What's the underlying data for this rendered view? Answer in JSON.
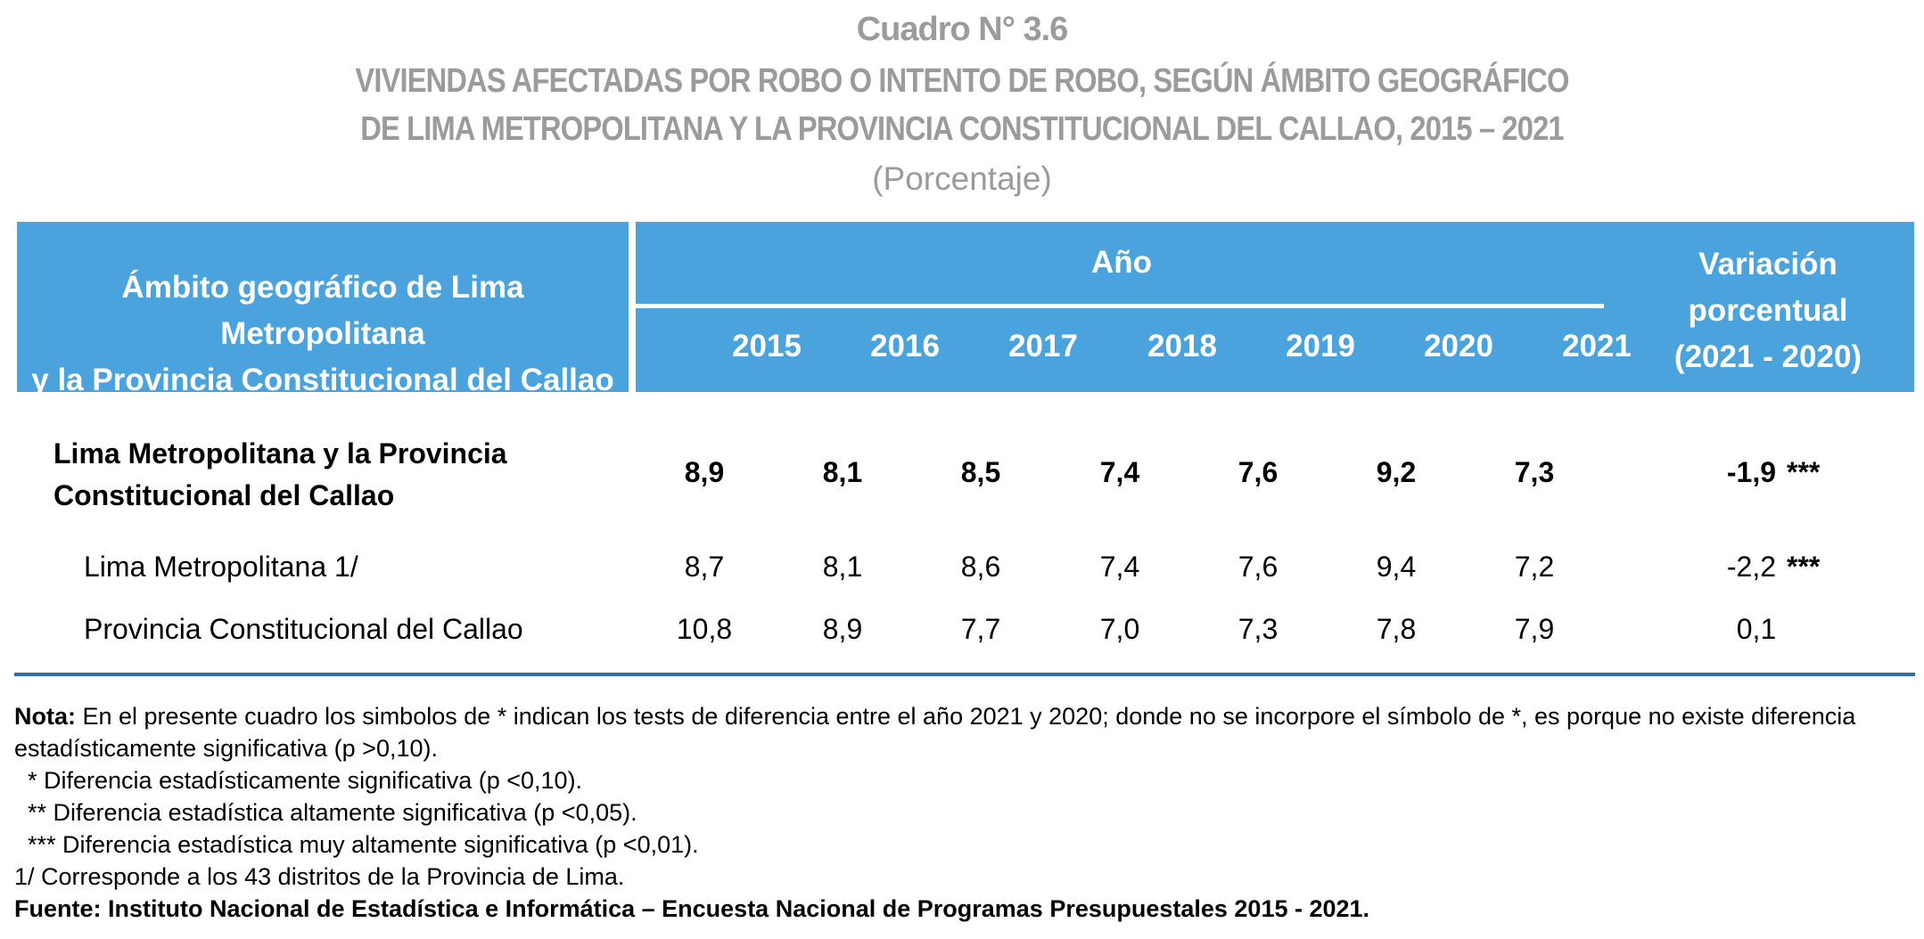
{
  "title": {
    "cuadro": "Cuadro N° 3.6",
    "line1": "VIVIENDAS AFECTADAS POR ROBO O INTENTO DE ROBO, SEGÚN ÁMBITO GEOGRÁFICO",
    "line2": "DE LIMA METROPOLITANA Y LA PROVINCIA CONSTITUCIONAL DEL CALLAO, 2015 – 2021",
    "unit": "(Porcentaje)"
  },
  "header": {
    "geo_line1": "Ámbito geográfico de Lima Metropolitana",
    "geo_line2": "y la Provincia Constitucional del Callao",
    "anio": "Año",
    "years": [
      "2015",
      "2016",
      "2017",
      "2018",
      "2019",
      "2020",
      "2021"
    ],
    "var_line1": "Variación",
    "var_line2": "porcentual",
    "var_line3": "(2021 - 2020)"
  },
  "rows": [
    {
      "label_line1": "Lima Metropolitana y la Provincia",
      "label_line2": "Constitucional del Callao",
      "values": [
        "8,9",
        "8,1",
        "8,5",
        "7,4",
        "7,6",
        "9,2",
        "7,3"
      ],
      "variation": "-1,9",
      "stars": "***"
    },
    {
      "label": "Lima Metropolitana 1/",
      "values": [
        "8,7",
        "8,1",
        "8,6",
        "7,4",
        "7,6",
        "9,4",
        "7,2"
      ],
      "variation": "-2,2",
      "stars": "***"
    },
    {
      "label": "Provincia Constitucional del Callao",
      "values": [
        "10,8",
        "8,9",
        "7,7",
        "7,0",
        "7,3",
        "7,8",
        "7,9"
      ],
      "variation": "0,1",
      "stars": ""
    }
  ],
  "notes": {
    "nota_label": "Nota:",
    "nota_text": " En el presente cuadro los simbolos de * indican los tests de diferencia entre el año 2021 y 2020; donde no se incorpore el símbolo de *, es porque no existe diferencia estadísticamente significativa (p >0,10).",
    "star1": "  * Diferencia estadísticamente significativa (p <0,10).",
    "star2": "  ** Diferencia estadística altamente significativa (p <0,05).",
    "star3": "  *** Diferencia estadística muy altamente significativa (p <0,01).",
    "footnote1": "1/ Corresponde a los 43 distritos de la Provincia de Lima.",
    "fuente": "Fuente: Instituto Nacional de Estadística e Informática – Encuesta Nacional de Programas Presupuestales 2015 - 2021."
  }
}
